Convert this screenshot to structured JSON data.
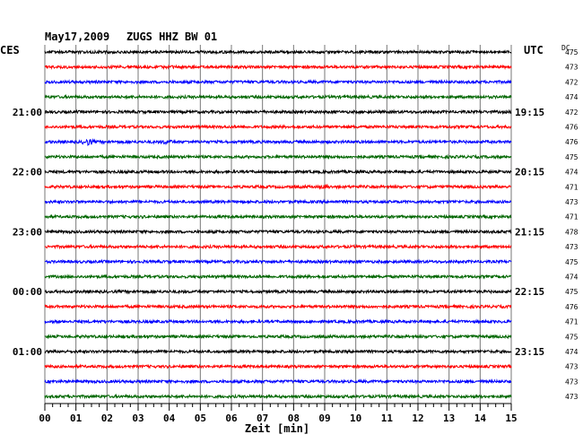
{
  "header": {
    "date": "May17,2009",
    "station": "ZUGS HHZ BW 01",
    "left_tz": "CES",
    "right_tz": "UTC",
    "dc_label": "DC"
  },
  "chart_data": {
    "type": "line",
    "title": "May17,2009  ZUGS HHZ BW 01",
    "xlabel": "Zeit [min]",
    "xlim": [
      0,
      15
    ],
    "x_ticks": [
      "00",
      "01",
      "02",
      "03",
      "04",
      "05",
      "06",
      "07",
      "08",
      "09",
      "10",
      "11",
      "12",
      "13",
      "14",
      "15"
    ],
    "trace_colors": [
      "#000000",
      "#ff0000",
      "#0000ff",
      "#006600"
    ],
    "left_time_labels": [
      {
        "trace": 4,
        "label": "21:00"
      },
      {
        "trace": 8,
        "label": "22:00"
      },
      {
        "trace": 12,
        "label": "23:00"
      },
      {
        "trace": 16,
        "label": "00:00"
      },
      {
        "trace": 20,
        "label": "01:00"
      }
    ],
    "right_time_labels": [
      {
        "trace": 4,
        "label": "19:15"
      },
      {
        "trace": 8,
        "label": "20:15"
      },
      {
        "trace": 12,
        "label": "21:15"
      },
      {
        "trace": 16,
        "label": "22:15"
      },
      {
        "trace": 20,
        "label": "23:15"
      }
    ],
    "dc_values": [
      "475",
      "473",
      "472",
      "474",
      "472",
      "476",
      "476",
      "475",
      "474",
      "471",
      "473",
      "471",
      "478",
      "473",
      "475",
      "474",
      "475",
      "476",
      "471",
      "475",
      "474",
      "473",
      "473",
      "473"
    ],
    "events": [
      {
        "trace": 6,
        "minute": 1.4,
        "amplitude": 2.5
      },
      {
        "trace": 6,
        "minute": 3.9,
        "amplitude": 1.3
      },
      {
        "trace": 9,
        "minute": 9.0,
        "amplitude": 1.2
      }
    ]
  }
}
